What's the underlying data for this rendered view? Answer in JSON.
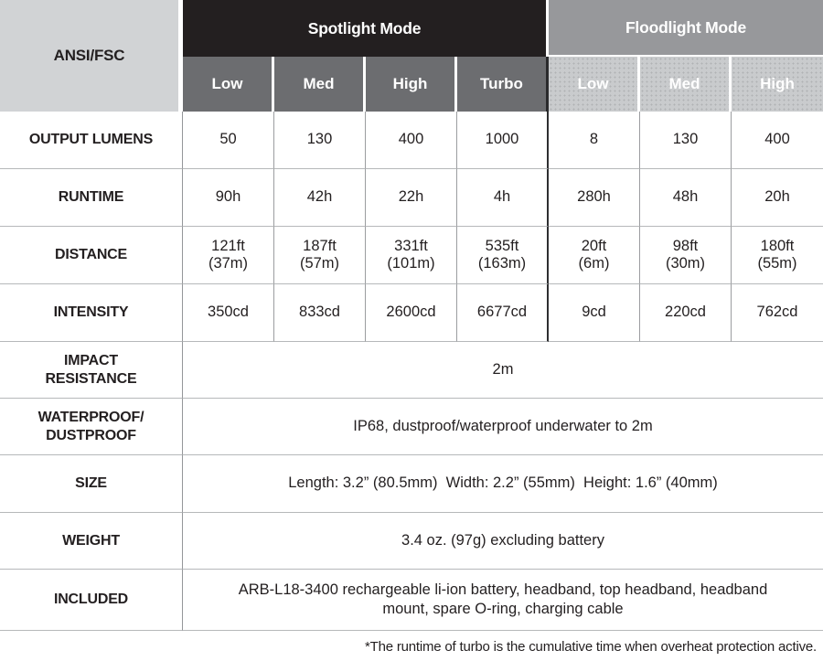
{
  "colors": {
    "spotlight_header_bg": "#231f20",
    "spotlight_subheader_bg": "#6c6d70",
    "floodlight_header_bg": "#97989b",
    "floodlight_subheader_bg": "#c9cbcd",
    "corner_bg": "#d1d3d5",
    "header_text": "#ffffff",
    "body_text": "#231f20"
  },
  "table": {
    "corner_label": "ANSI/FSC",
    "groups": [
      {
        "title": "Spotlight Mode",
        "modes": [
          "Low",
          "Med",
          "High",
          "Turbo"
        ]
      },
      {
        "title": "Floodlight Mode",
        "modes": [
          "Low",
          "Med",
          "High"
        ]
      }
    ],
    "data_rows": [
      {
        "label": "OUTPUT LUMENS",
        "values": [
          "50",
          "130",
          "400",
          "1000",
          "8",
          "130",
          "400"
        ]
      },
      {
        "label": "RUNTIME",
        "values": [
          "90h",
          "42h",
          "22h",
          "4h",
          "280h",
          "48h",
          "20h"
        ]
      },
      {
        "label": "DISTANCE",
        "values": [
          [
            "121ft",
            "(37m)"
          ],
          [
            "187ft",
            "(57m)"
          ],
          [
            "331ft",
            "(101m)"
          ],
          [
            "535ft",
            "(163m)"
          ],
          [
            "20ft",
            "(6m)"
          ],
          [
            "98ft",
            "(30m)"
          ],
          [
            "180ft",
            "(55m)"
          ]
        ]
      },
      {
        "label": "INTENSITY",
        "values": [
          "350cd",
          "833cd",
          "2600cd",
          "6677cd",
          "9cd",
          "220cd",
          "762cd"
        ]
      }
    ],
    "info_rows": [
      {
        "label_line1": "IMPACT",
        "label_line2": "RESISTANCE",
        "value": "2m"
      },
      {
        "label_line1": "WATERPROOF/",
        "label_line2": "DUSTPROOF",
        "value": "IP68, dustproof/waterproof underwater to 2m"
      },
      {
        "label_line1": "SIZE",
        "label_line2": "",
        "value": "Length: 3.2” (80.5mm)  Width: 2.2” (55mm)  Height: 1.6” (40mm)"
      },
      {
        "label_line1": "WEIGHT",
        "label_line2": "",
        "value": "3.4 oz. (97g) excluding battery"
      },
      {
        "label_line1": "INCLUDED",
        "label_line2": "",
        "value": "ARB-L18-3400 rechargeable li-ion battery, headband, top headband, headband mount, spare O-ring, charging cable"
      }
    ],
    "footnote": "*The runtime of turbo is the cumulative time when overheat protection active."
  }
}
